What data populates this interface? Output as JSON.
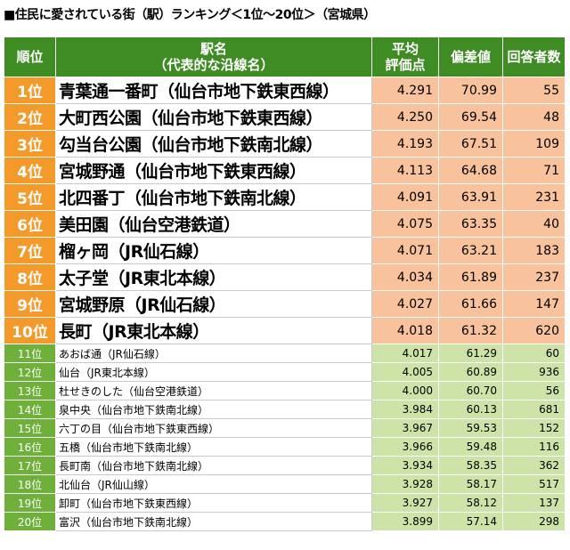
{
  "title": "■住民に愛されている街（駅）ランキング＜1位～20位＞（宮城県）",
  "headers": {
    "rank": "順位",
    "name_line1": "駅名",
    "name_line2": "（代表的な沿線名）",
    "score_line1": "平均",
    "score_line2": "評価点",
    "deviation": "偏差値",
    "respondents": "回答者数"
  },
  "colors": {
    "header_green": "#3f8c24",
    "top_rank_orange": "#f39a2a",
    "top_value_peach": "#f7c29c",
    "lower_rank_green": "#6fb03b",
    "lower_value_green": "#cde3a8"
  },
  "rows": [
    {
      "rank": "1位",
      "name": "青葉通一番町（仙台市地下鉄東西線）",
      "score": "4.291",
      "deviation": "70.99",
      "respondents": "55"
    },
    {
      "rank": "2位",
      "name": "大町西公園（仙台市地下鉄東西線）",
      "score": "4.250",
      "deviation": "69.54",
      "respondents": "48"
    },
    {
      "rank": "3位",
      "name": "勾当台公園（仙台市地下鉄南北線）",
      "score": "4.193",
      "deviation": "67.51",
      "respondents": "109"
    },
    {
      "rank": "4位",
      "name": "宮城野通（仙台市地下鉄東西線）",
      "score": "4.113",
      "deviation": "64.68",
      "respondents": "71"
    },
    {
      "rank": "5位",
      "name": "北四番丁（仙台市地下鉄南北線）",
      "score": "4.091",
      "deviation": "63.91",
      "respondents": "231"
    },
    {
      "rank": "6位",
      "name": "美田園（仙台空港鉄道）",
      "score": "4.075",
      "deviation": "63.35",
      "respondents": "40"
    },
    {
      "rank": "7位",
      "name": "榴ヶ岡（JR仙石線）",
      "score": "4.071",
      "deviation": "63.21",
      "respondents": "183"
    },
    {
      "rank": "8位",
      "name": "太子堂（JR東北本線）",
      "score": "4.034",
      "deviation": "61.89",
      "respondents": "237"
    },
    {
      "rank": "9位",
      "name": "宮城野原（JR仙石線）",
      "score": "4.027",
      "deviation": "61.66",
      "respondents": "147"
    },
    {
      "rank": "10位",
      "name": "長町（JR東北本線）",
      "score": "4.018",
      "deviation": "61.32",
      "respondents": "620"
    },
    {
      "rank": "11位",
      "name": "あおば通（JR仙石線）",
      "score": "4.017",
      "deviation": "61.29",
      "respondents": "60"
    },
    {
      "rank": "12位",
      "name": "仙台（JR東北本線）",
      "score": "4.005",
      "deviation": "60.89",
      "respondents": "936"
    },
    {
      "rank": "13位",
      "name": "杜せきのした（仙台空港鉄道）",
      "score": "4.000",
      "deviation": "60.70",
      "respondents": "56"
    },
    {
      "rank": "14位",
      "name": "泉中央（仙台市地下鉄南北線）",
      "score": "3.984",
      "deviation": "60.13",
      "respondents": "681"
    },
    {
      "rank": "15位",
      "name": "六丁の目（仙台市地下鉄東西線）",
      "score": "3.967",
      "deviation": "59.53",
      "respondents": "152"
    },
    {
      "rank": "16位",
      "name": "五橋（仙台市地下鉄南北線）",
      "score": "3.966",
      "deviation": "59.48",
      "respondents": "116"
    },
    {
      "rank": "17位",
      "name": "長町南（仙台市地下鉄南北線）",
      "score": "3.934",
      "deviation": "58.35",
      "respondents": "362"
    },
    {
      "rank": "18位",
      "name": "北仙台（JR仙山線）",
      "score": "3.928",
      "deviation": "58.17",
      "respondents": "517"
    },
    {
      "rank": "19位",
      "name": "卸町（仙台市地下鉄東西線）",
      "score": "3.927",
      "deviation": "58.12",
      "respondents": "137"
    },
    {
      "rank": "20位",
      "name": "富沢（仙台市地下鉄南北線）",
      "score": "3.899",
      "deviation": "57.14",
      "respondents": "298"
    }
  ]
}
